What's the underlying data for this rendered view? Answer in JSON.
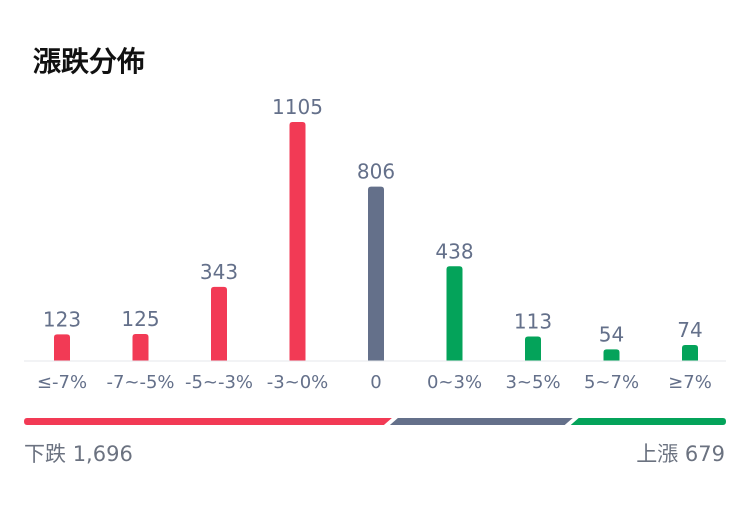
{
  "title": "漲跌分佈",
  "chart_data": {
    "type": "bar",
    "categories": [
      "≤-7%",
      "-7~-5%",
      "-5~-3%",
      "-3~0%",
      "0",
      "0~3%",
      "3~5%",
      "5~7%",
      "≥7%"
    ],
    "values": [
      123,
      125,
      343,
      1105,
      806,
      438,
      113,
      54,
      74
    ],
    "bar_colors": [
      "#f23a55",
      "#f23a55",
      "#f23a55",
      "#f23a55",
      "#64708a",
      "#04a35a",
      "#04a35a",
      "#04a35a",
      "#04a35a"
    ],
    "ylim": [
      0,
      1105
    ],
    "grid": false,
    "legend": "none"
  },
  "summary": {
    "down_label": "下跌",
    "down_count": 1696,
    "down_text": "1,696",
    "flat_count": 806,
    "up_label": "上漲",
    "up_count": 679,
    "up_text": "679",
    "down_color": "#f23a55",
    "flat_color": "#64708a",
    "up_color": "#04a35a"
  }
}
